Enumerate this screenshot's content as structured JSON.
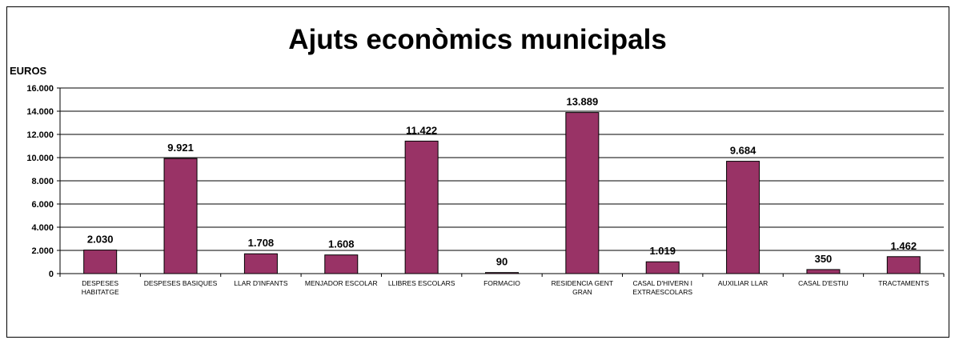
{
  "chart_data": {
    "type": "bar",
    "title": "Ajuts econòmics municipals",
    "ylabel": "EUROS",
    "xlabel": "",
    "ylim": [
      0,
      16000
    ],
    "yticks": [
      0,
      2000,
      4000,
      6000,
      8000,
      10000,
      12000,
      14000,
      16000
    ],
    "ytick_labels": [
      "0",
      "2.000",
      "4.000",
      "6.000",
      "8.000",
      "10.000",
      "12.000",
      "14.000",
      "16.000"
    ],
    "grid": true,
    "legend": "none",
    "bar_color": "#993366",
    "categories": [
      [
        "DESPESES",
        "HABITATGE"
      ],
      [
        "DESPESES BASIQUES"
      ],
      [
        "LLAR D'INFANTS"
      ],
      [
        "MENJADOR ESCOLAR"
      ],
      [
        "LLIBRES ESCOLARS"
      ],
      [
        "FORMACIO"
      ],
      [
        "RESIDENCIA GENT",
        "GRAN"
      ],
      [
        "CASAL D'HIVERN I",
        "EXTRAESCOLARS"
      ],
      [
        "AUXILIAR LLAR"
      ],
      [
        "CASAL D'ESTIU"
      ],
      [
        "TRACTAMENTS"
      ]
    ],
    "values": [
      2030,
      9921,
      1708,
      1608,
      11422,
      90,
      13889,
      1019,
      9684,
      350,
      1462
    ],
    "value_labels": [
      "2.030",
      "9.921",
      "1.708",
      "1.608",
      "11.422",
      "90",
      "13.889",
      "1.019",
      "9.684",
      "350",
      "1.462"
    ]
  }
}
